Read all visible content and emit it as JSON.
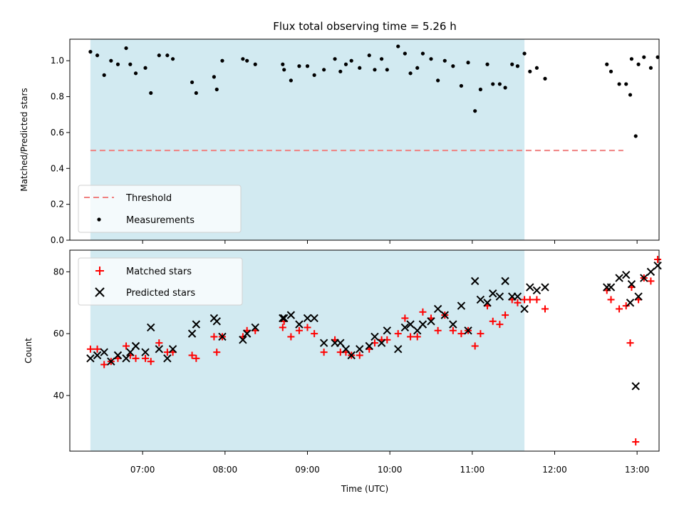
{
  "chart_data": [
    {
      "type": "scatter",
      "title": "Flux total observing time = 5.26 h",
      "ylabel": "Matched/Predicted stars",
      "xlabel": "",
      "ylim": [
        0,
        1.12
      ],
      "xlim": [
        "06:07",
        "13:16"
      ],
      "yticks": [
        0.0,
        0.2,
        0.4,
        0.6,
        0.8,
        1.0
      ],
      "ytick_labels": [
        "0.0",
        "0.2",
        "0.4",
        "0.6",
        "0.8",
        "1.0"
      ],
      "observing_window": [
        "06:22",
        "11:38"
      ],
      "threshold": 0.5,
      "threshold_x": [
        "06:22",
        "12:50"
      ],
      "legend": {
        "position": "lower-left",
        "entries": [
          "Threshold",
          "Measurements"
        ]
      },
      "colors": {
        "window": "#add8e6",
        "threshold": "#f08080",
        "measurements": "#000000"
      },
      "series": [
        {
          "name": "Measurements",
          "points": [
            [
              "06:22",
              1.05
            ],
            [
              "06:27",
              1.03
            ],
            [
              "06:32",
              0.92
            ],
            [
              "06:37",
              1.0
            ],
            [
              "06:42",
              0.98
            ],
            [
              "06:48",
              1.07
            ],
            [
              "06:51",
              0.98
            ],
            [
              "06:55",
              0.93
            ],
            [
              "07:02",
              0.96
            ],
            [
              "07:06",
              0.82
            ],
            [
              "07:12",
              1.03
            ],
            [
              "07:18",
              1.03
            ],
            [
              "07:22",
              1.01
            ],
            [
              "07:36",
              0.88
            ],
            [
              "07:39",
              0.82
            ],
            [
              "07:52",
              0.91
            ],
            [
              "07:54",
              0.84
            ],
            [
              "07:58",
              1.0
            ],
            [
              "08:13",
              1.01
            ],
            [
              "08:16",
              1.0
            ],
            [
              "08:22",
              0.98
            ],
            [
              "08:42",
              0.98
            ],
            [
              "08:43",
              0.95
            ],
            [
              "08:48",
              0.89
            ],
            [
              "08:54",
              0.97
            ],
            [
              "09:00",
              0.97
            ],
            [
              "09:05",
              0.92
            ],
            [
              "09:12",
              0.95
            ],
            [
              "09:20",
              1.01
            ],
            [
              "09:24",
              0.94
            ],
            [
              "09:28",
              0.98
            ],
            [
              "09:32",
              1.0
            ],
            [
              "09:38",
              0.96
            ],
            [
              "09:45",
              1.03
            ],
            [
              "09:49",
              0.95
            ],
            [
              "09:54",
              1.01
            ],
            [
              "09:58",
              0.95
            ],
            [
              "10:06",
              1.08
            ],
            [
              "10:11",
              1.04
            ],
            [
              "10:15",
              0.93
            ],
            [
              "10:20",
              0.96
            ],
            [
              "10:24",
              1.04
            ],
            [
              "10:30",
              1.01
            ],
            [
              "10:35",
              0.89
            ],
            [
              "10:40",
              1.0
            ],
            [
              "10:46",
              0.97
            ],
            [
              "10:52",
              0.86
            ],
            [
              "10:57",
              0.99
            ],
            [
              "11:02",
              0.72
            ],
            [
              "11:06",
              0.84
            ],
            [
              "11:11",
              0.98
            ],
            [
              "11:15",
              0.87
            ],
            [
              "11:20",
              0.87
            ],
            [
              "11:24",
              0.85
            ],
            [
              "11:29",
              0.98
            ],
            [
              "11:33",
              0.97
            ],
            [
              "11:38",
              1.04
            ],
            [
              "11:42",
              0.94
            ],
            [
              "11:47",
              0.96
            ],
            [
              "11:53",
              0.9
            ],
            [
              "12:38",
              0.98
            ],
            [
              "12:41",
              0.94
            ],
            [
              "12:47",
              0.87
            ],
            [
              "12:52",
              0.87
            ],
            [
              "12:56",
              1.01
            ],
            [
              "13:01",
              0.98
            ],
            [
              "13:05",
              1.02
            ],
            [
              "13:10",
              0.96
            ],
            [
              "13:15",
              1.02
            ],
            [
              "12:55",
              0.81
            ],
            [
              "12:59",
              0.58
            ]
          ]
        }
      ]
    },
    {
      "type": "scatter",
      "title": "",
      "xlabel": "Time (UTC)",
      "ylabel": "Count",
      "ylim": [
        22,
        87
      ],
      "xlim": [
        "06:07",
        "13:16"
      ],
      "yticks": [
        40,
        60,
        80
      ],
      "ytick_labels": [
        "40",
        "60",
        "80"
      ],
      "xticks": [
        "07:00",
        "08:00",
        "09:00",
        "10:00",
        "11:00",
        "12:00",
        "13:00"
      ],
      "xtick_labels": [
        "07:00",
        "08:00",
        "09:00",
        "10:00",
        "11:00",
        "12:00",
        "13:00"
      ],
      "observing_window": [
        "06:22",
        "11:38"
      ],
      "legend": {
        "position": "upper-left",
        "entries": [
          "Matched stars",
          "Predicted stars"
        ]
      },
      "colors": {
        "window": "#add8e6",
        "matched": "#ff0000",
        "predicted": "#000000"
      },
      "series": [
        {
          "name": "Matched stars",
          "points": [
            [
              "06:22",
              55
            ],
            [
              "06:27",
              55
            ],
            [
              "06:32",
              50
            ],
            [
              "06:37",
              51
            ],
            [
              "06:42",
              52
            ],
            [
              "06:48",
              56
            ],
            [
              "06:51",
              53
            ],
            [
              "06:55",
              52
            ],
            [
              "07:02",
              52
            ],
            [
              "07:06",
              51
            ],
            [
              "07:12",
              57
            ],
            [
              "07:18",
              54
            ],
            [
              "07:22",
              54
            ],
            [
              "07:36",
              53
            ],
            [
              "07:39",
              52
            ],
            [
              "07:52",
              59
            ],
            [
              "07:54",
              54
            ],
            [
              "07:58",
              59
            ],
            [
              "08:13",
              59
            ],
            [
              "08:16",
              61
            ],
            [
              "08:22",
              61
            ],
            [
              "08:42",
              62
            ],
            [
              "08:43",
              64
            ],
            [
              "08:48",
              59
            ],
            [
              "08:54",
              61
            ],
            [
              "09:00",
              62
            ],
            [
              "09:05",
              60
            ],
            [
              "09:12",
              54
            ],
            [
              "09:20",
              58
            ],
            [
              "09:24",
              54
            ],
            [
              "09:28",
              54
            ],
            [
              "09:32",
              53
            ],
            [
              "09:38",
              53
            ],
            [
              "09:45",
              55
            ],
            [
              "09:49",
              57
            ],
            [
              "09:54",
              58
            ],
            [
              "09:58",
              58
            ],
            [
              "10:06",
              60
            ],
            [
              "10:11",
              65
            ],
            [
              "10:15",
              59
            ],
            [
              "10:20",
              59
            ],
            [
              "10:24",
              67
            ],
            [
              "10:30",
              65
            ],
            [
              "10:35",
              61
            ],
            [
              "10:40",
              66
            ],
            [
              "10:46",
              61
            ],
            [
              "10:52",
              60
            ],
            [
              "10:57",
              61
            ],
            [
              "11:02",
              56
            ],
            [
              "11:06",
              60
            ],
            [
              "11:11",
              69
            ],
            [
              "11:15",
              64
            ],
            [
              "11:20",
              63
            ],
            [
              "11:24",
              66
            ],
            [
              "11:29",
              71
            ],
            [
              "11:33",
              70
            ],
            [
              "11:38",
              71
            ],
            [
              "11:42",
              71
            ],
            [
              "11:47",
              71
            ],
            [
              "11:53",
              68
            ],
            [
              "12:38",
              74
            ],
            [
              "12:41",
              71
            ],
            [
              "12:47",
              68
            ],
            [
              "12:52",
              69
            ],
            [
              "12:56",
              75
            ],
            [
              "13:01",
              71
            ],
            [
              "13:05",
              78
            ],
            [
              "13:10",
              77
            ],
            [
              "13:15",
              84
            ],
            [
              "12:55",
              57
            ],
            [
              "12:59",
              25
            ]
          ]
        },
        {
          "name": "Predicted stars",
          "points": [
            [
              "06:22",
              52
            ],
            [
              "06:27",
              53
            ],
            [
              "06:32",
              54
            ],
            [
              "06:37",
              51
            ],
            [
              "06:42",
              53
            ],
            [
              "06:48",
              52
            ],
            [
              "06:51",
              54
            ],
            [
              "06:55",
              56
            ],
            [
              "07:02",
              54
            ],
            [
              "07:06",
              62
            ],
            [
              "07:12",
              55
            ],
            [
              "07:18",
              52
            ],
            [
              "07:22",
              55
            ],
            [
              "07:36",
              60
            ],
            [
              "07:39",
              63
            ],
            [
              "07:52",
              65
            ],
            [
              "07:54",
              64
            ],
            [
              "07:58",
              59
            ],
            [
              "08:13",
              58
            ],
            [
              "08:16",
              60
            ],
            [
              "08:22",
              62
            ],
            [
              "08:42",
              65
            ],
            [
              "08:43",
              65
            ],
            [
              "08:48",
              66
            ],
            [
              "08:54",
              63
            ],
            [
              "09:00",
              65
            ],
            [
              "09:05",
              65
            ],
            [
              "09:12",
              57
            ],
            [
              "09:20",
              57
            ],
            [
              "09:24",
              57
            ],
            [
              "09:28",
              55
            ],
            [
              "09:32",
              53
            ],
            [
              "09:38",
              55
            ],
            [
              "09:45",
              56
            ],
            [
              "09:49",
              59
            ],
            [
              "09:54",
              57
            ],
            [
              "09:58",
              61
            ],
            [
              "10:06",
              55
            ],
            [
              "10:11",
              62
            ],
            [
              "10:15",
              63
            ],
            [
              "10:20",
              61
            ],
            [
              "10:24",
              63
            ],
            [
              "10:30",
              64
            ],
            [
              "10:35",
              68
            ],
            [
              "10:40",
              66
            ],
            [
              "10:46",
              63
            ],
            [
              "10:52",
              69
            ],
            [
              "10:57",
              61
            ],
            [
              "11:02",
              77
            ],
            [
              "11:06",
              71
            ],
            [
              "11:11",
              70
            ],
            [
              "11:15",
              73
            ],
            [
              "11:20",
              72
            ],
            [
              "11:24",
              77
            ],
            [
              "11:29",
              72
            ],
            [
              "11:33",
              72
            ],
            [
              "11:38",
              68
            ],
            [
              "11:42",
              75
            ],
            [
              "11:47",
              74
            ],
            [
              "11:53",
              75
            ],
            [
              "12:38",
              75
            ],
            [
              "12:41",
              75
            ],
            [
              "12:47",
              78
            ],
            [
              "12:52",
              79
            ],
            [
              "12:56",
              76
            ],
            [
              "13:01",
              72
            ],
            [
              "13:05",
              78
            ],
            [
              "13:10",
              80
            ],
            [
              "13:15",
              82
            ],
            [
              "12:55",
              70
            ],
            [
              "12:59",
              43
            ]
          ]
        }
      ]
    }
  ]
}
